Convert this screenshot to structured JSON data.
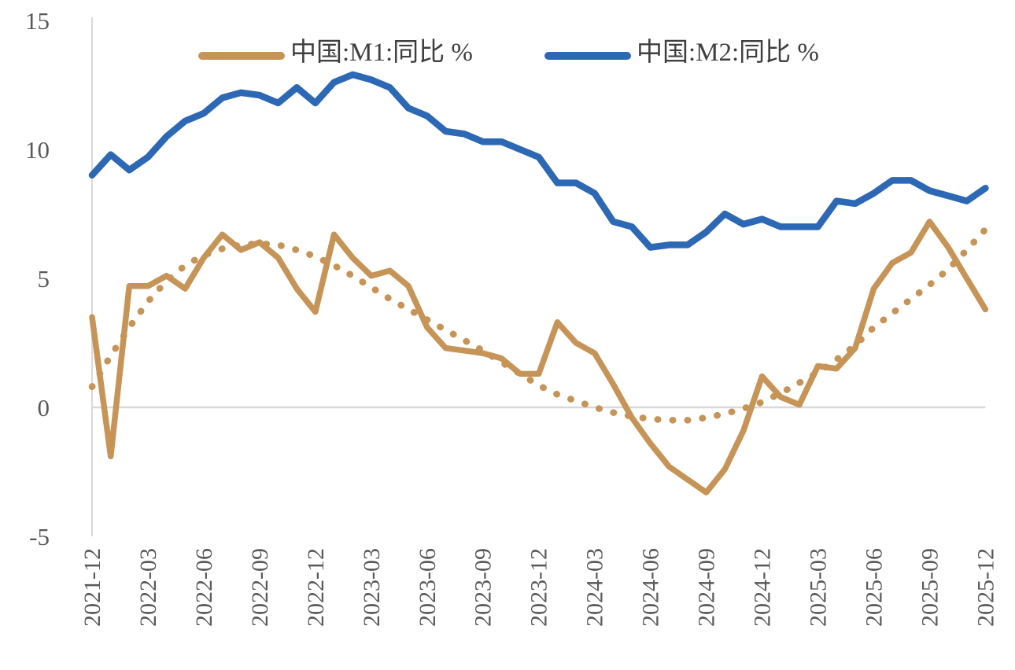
{
  "legend": {
    "m1_label": "中国:M1:同比 %",
    "m2_label": "中国:M2:同比 %"
  },
  "chart_data": {
    "type": "line",
    "title": "",
    "xlabel": "",
    "ylabel": "",
    "ylim": [
      -5,
      15
    ],
    "yticks": [
      15,
      10,
      5,
      0,
      -5
    ],
    "x_tick_interval": 3,
    "grid": "zero-line-only",
    "legend_position": "top-center",
    "colors": {
      "m1": "#C79457",
      "m2": "#2D68B4",
      "trend": "#C79457",
      "axis_line": "#D9D9D9",
      "zero_line": "#D9D9D9",
      "tick_text": "#595959",
      "legend_text": "#3F3F3F"
    },
    "categories": [
      "2021-12",
      "2022-01",
      "2022-02",
      "2022-03",
      "2022-04",
      "2022-05",
      "2022-06",
      "2022-07",
      "2022-08",
      "2022-09",
      "2022-10",
      "2022-11",
      "2022-12",
      "2023-01",
      "2023-02",
      "2023-03",
      "2023-04",
      "2023-05",
      "2023-06",
      "2023-07",
      "2023-08",
      "2023-09",
      "2023-10",
      "2023-11",
      "2023-12",
      "2024-01",
      "2024-02",
      "2024-03",
      "2024-04",
      "2024-05",
      "2024-06",
      "2024-07",
      "2024-08",
      "2024-09",
      "2024-10",
      "2024-11",
      "2024-12",
      "2025-01",
      "2025-02",
      "2025-03",
      "2025-04",
      "2025-05",
      "2025-06",
      "2025-07",
      "2025-08",
      "2025-09",
      "2025-10",
      "2025-11",
      "2025-12"
    ],
    "series": [
      {
        "name": "中国:M1:同比 %",
        "style": "solid",
        "color_key": "m1",
        "width": 7.5,
        "in_legend": true,
        "values": [
          3.5,
          -1.9,
          4.7,
          4.7,
          5.1,
          4.6,
          5.8,
          6.7,
          6.1,
          6.4,
          5.8,
          4.6,
          3.7,
          6.7,
          5.8,
          5.1,
          5.3,
          4.7,
          3.1,
          2.3,
          2.2,
          2.1,
          1.9,
          1.3,
          1.3,
          3.3,
          2.5,
          2.1,
          0.9,
          -0.4,
          -1.4,
          -2.3,
          -2.8,
          -3.3,
          -2.4,
          -0.9,
          1.2,
          0.4,
          0.1,
          1.6,
          1.5,
          2.3,
          4.6,
          5.6,
          6.0,
          7.2,
          6.2,
          5.0,
          3.8
        ]
      },
      {
        "name": "M1同比趋势线(虚线)",
        "style": "dotted",
        "color_key": "trend",
        "width": 8.5,
        "in_legend": false,
        "values": [
          0.8,
          2.0,
          3.1,
          4.1,
          4.9,
          5.5,
          5.9,
          6.15,
          6.3,
          6.35,
          6.3,
          6.1,
          5.85,
          5.5,
          5.1,
          4.65,
          4.2,
          3.8,
          3.4,
          3.0,
          2.6,
          2.2,
          1.75,
          1.3,
          0.85,
          0.5,
          0.25,
          0.0,
          -0.2,
          -0.35,
          -0.45,
          -0.5,
          -0.5,
          -0.4,
          -0.25,
          -0.05,
          0.2,
          0.55,
          0.95,
          1.35,
          1.85,
          2.4,
          3.1,
          3.65,
          4.2,
          4.75,
          5.35,
          6.1,
          6.9
        ]
      },
      {
        "name": "中国:M2:同比 %",
        "style": "solid",
        "color_key": "m2",
        "width": 8.5,
        "in_legend": true,
        "values": [
          9.0,
          9.8,
          9.2,
          9.7,
          10.5,
          11.1,
          11.4,
          12.0,
          12.2,
          12.1,
          11.8,
          12.4,
          11.8,
          12.6,
          12.9,
          12.7,
          12.4,
          11.6,
          11.3,
          10.7,
          10.6,
          10.3,
          10.3,
          10.0,
          9.7,
          8.7,
          8.7,
          8.3,
          7.2,
          7.0,
          6.2,
          6.3,
          6.3,
          6.8,
          7.5,
          7.1,
          7.3,
          7.0,
          7.0,
          7.0,
          8.0,
          7.9,
          8.3,
          8.8,
          8.8,
          8.4,
          8.2,
          8.0,
          8.5
        ]
      }
    ]
  }
}
